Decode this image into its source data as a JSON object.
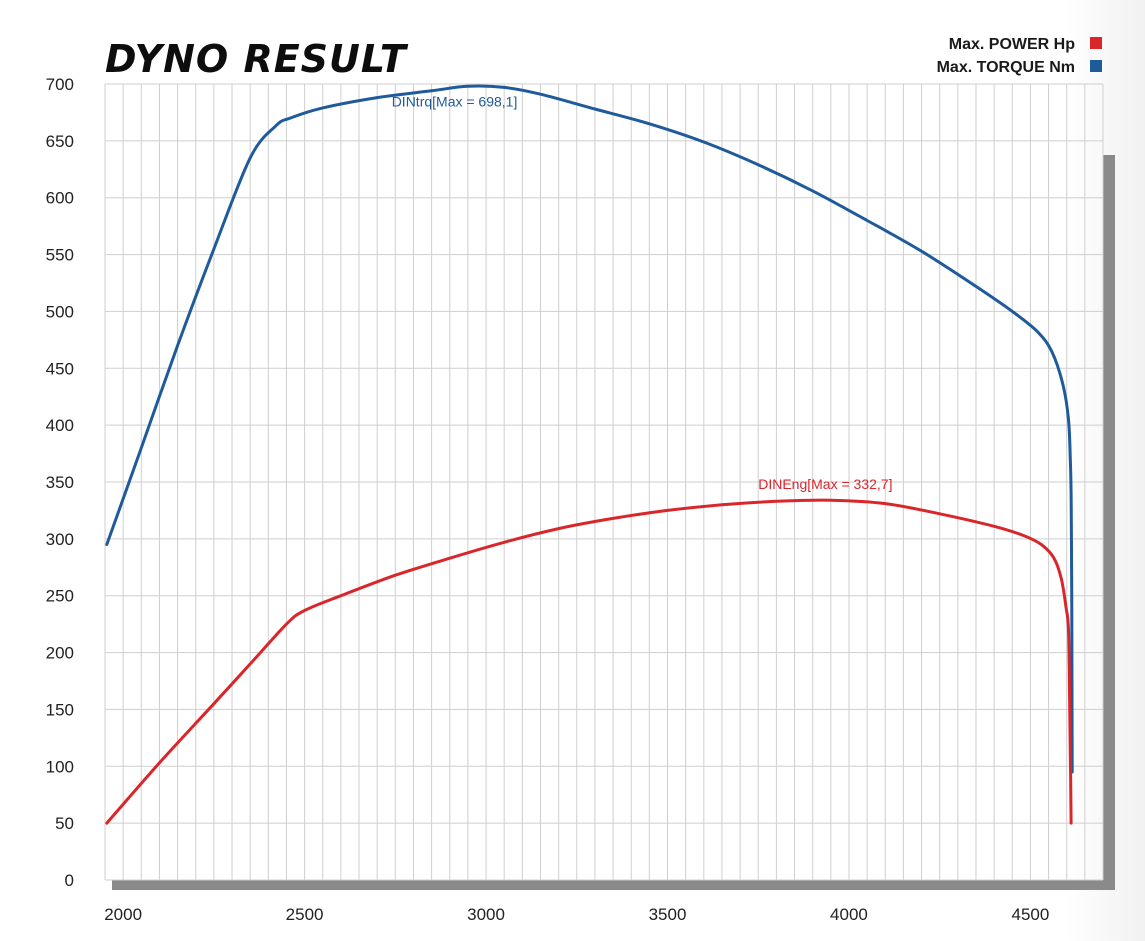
{
  "chart_data": {
    "type": "line",
    "title": "DYNO RESULT",
    "xlabel": "",
    "ylabel": "",
    "xlim": [
      1950,
      4700
    ],
    "ylim": [
      0,
      700
    ],
    "x_ticks": [
      2000,
      2500,
      3000,
      3500,
      4000,
      4500
    ],
    "y_ticks": [
      0,
      50,
      100,
      150,
      200,
      250,
      300,
      350,
      400,
      450,
      500,
      550,
      600,
      650,
      700
    ],
    "y_tick_labels": [
      "0",
      "50",
      "100",
      "150",
      "200",
      "250",
      "300",
      "350",
      "400",
      "450",
      "500",
      "550",
      "600",
      "650",
      "700"
    ],
    "grid": true,
    "legend_position": "top-right",
    "legend": [
      {
        "label": "Max. POWER Hp",
        "color": "#d9262a"
      },
      {
        "label": "Max. TORQUE Nm",
        "color": "#1f5a9a"
      }
    ],
    "series": [
      {
        "key": "torque",
        "color": "#1f5a9a",
        "annotation": "DINtrq[Max = 698,1]",
        "annotation_at": {
          "x": 2740,
          "y": 680
        },
        "points": [
          [
            1955,
            295
          ],
          [
            2050,
            380
          ],
          [
            2150,
            470
          ],
          [
            2250,
            555
          ],
          [
            2350,
            635
          ],
          [
            2420,
            663
          ],
          [
            2460,
            670
          ],
          [
            2550,
            679
          ],
          [
            2700,
            688
          ],
          [
            2850,
            694
          ],
          [
            2950,
            698
          ],
          [
            3050,
            697
          ],
          [
            3150,
            691
          ],
          [
            3300,
            678
          ],
          [
            3450,
            665
          ],
          [
            3600,
            649
          ],
          [
            3750,
            629
          ],
          [
            3900,
            606
          ],
          [
            4050,
            580
          ],
          [
            4200,
            553
          ],
          [
            4350,
            522
          ],
          [
            4450,
            500
          ],
          [
            4520,
            482
          ],
          [
            4560,
            464
          ],
          [
            4590,
            435
          ],
          [
            4605,
            405
          ],
          [
            4610,
            370
          ],
          [
            4612,
            340
          ],
          [
            4613,
            305
          ],
          [
            4614,
            240
          ],
          [
            4615,
            95
          ]
        ]
      },
      {
        "key": "power",
        "color": "#d9262a",
        "annotation": "DINEng[Max = 332,7]",
        "annotation_at": {
          "x": 3750,
          "y": 344
        },
        "points": [
          [
            1955,
            50
          ],
          [
            2100,
            103
          ],
          [
            2250,
            155
          ],
          [
            2350,
            190
          ],
          [
            2450,
            225
          ],
          [
            2500,
            237
          ],
          [
            2600,
            250
          ],
          [
            2750,
            268
          ],
          [
            2900,
            283
          ],
          [
            3050,
            297
          ],
          [
            3200,
            309
          ],
          [
            3350,
            318
          ],
          [
            3500,
            325
          ],
          [
            3650,
            330
          ],
          [
            3800,
            333
          ],
          [
            3950,
            334
          ],
          [
            4100,
            331
          ],
          [
            4250,
            322
          ],
          [
            4400,
            311
          ],
          [
            4480,
            303
          ],
          [
            4530,
            295
          ],
          [
            4565,
            283
          ],
          [
            4585,
            265
          ],
          [
            4598,
            240
          ],
          [
            4605,
            220
          ],
          [
            4608,
            160
          ],
          [
            4610,
            110
          ],
          [
            4611,
            85
          ],
          [
            4612,
            50
          ]
        ]
      }
    ]
  },
  "colors": {
    "grid": "#cfcfcf",
    "frame_shadow": "#8a8a8a",
    "torque": "#1f5a9a",
    "power": "#d9262a"
  }
}
